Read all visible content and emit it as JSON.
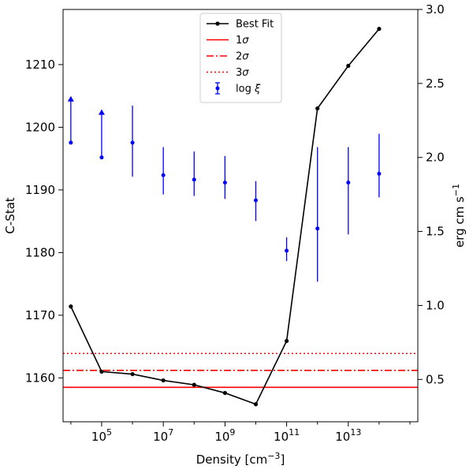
{
  "chart_data": {
    "type": "line",
    "xscale": "log",
    "x_ticks": [
      {
        "value": 100000.0,
        "base": "10",
        "exp": "5"
      },
      {
        "value": 10000000.0,
        "base": "10",
        "exp": "7"
      },
      {
        "value": 1000000000.0,
        "base": "10",
        "exp": "9"
      },
      {
        "value": 100000000000.0,
        "base": "10",
        "exp": "11"
      },
      {
        "value": 10000000000000.0,
        "base": "10",
        "exp": "13"
      }
    ],
    "xlabel": "Density [cm",
    "xlabel_sup": "−3",
    "xlabel_end": "]",
    "xlim": [
      5600.0,
      1800000000000000.0
    ],
    "left_axis": {
      "ylabel": "C-Stat",
      "ylim": [
        1153.0,
        1218.8
      ],
      "ticks": [
        1160,
        1170,
        1180,
        1190,
        1200,
        1210
      ]
    },
    "right_axis": {
      "ylabel": "erg cm s",
      "ylabel_sup": "−1",
      "ylim": [
        0.214,
        3.0
      ],
      "ticks": [
        "0.5",
        "1.0",
        "1.5",
        "2.0",
        "2.5",
        "3.0"
      ]
    },
    "series": [
      {
        "name": "Best Fit",
        "axis": "left",
        "color": "#000000",
        "x": [
          10000.0,
          100000.0,
          1000000.0,
          10000000.0,
          100000000.0,
          1000000000.0,
          10000000000.0,
          100000000000.0,
          1000000000000.0,
          10000000000000.0,
          100000000000000.0
        ],
        "y": [
          1171.4,
          1161.0,
          1160.6,
          1159.6,
          1158.9,
          1157.6,
          1155.8,
          1165.9,
          1203.0,
          1209.8,
          1215.7
        ]
      },
      {
        "name": "log ξ",
        "axis": "right",
        "color": "#0000ff",
        "x": [
          10000.0,
          100000.0,
          1000000.0,
          10000000.0,
          100000000.0,
          1000000000.0,
          10000000000.0,
          100000000000.0,
          1000000000000.0,
          10000000000000.0,
          100000000000000.0
        ],
        "y": [
          2.1,
          2.0,
          2.1,
          1.88,
          1.85,
          1.83,
          1.71,
          1.37,
          1.52,
          1.83,
          1.89
        ],
        "y_low": [
          2.1,
          2.0,
          1.87,
          1.75,
          1.74,
          1.72,
          1.57,
          1.3,
          1.16,
          1.48,
          1.73
        ],
        "y_high": [
          2.41,
          2.32,
          2.35,
          2.07,
          2.04,
          2.01,
          1.84,
          1.46,
          2.07,
          2.07,
          2.16
        ],
        "lower_limit": [
          true,
          true,
          false,
          false,
          false,
          false,
          false,
          false,
          false,
          false,
          false
        ]
      }
    ],
    "hlines": [
      {
        "name": "1σ",
        "label_base": "1",
        "label_sym": "σ",
        "y": 1158.5,
        "color": "#ff0000",
        "style": "solid"
      },
      {
        "name": "2σ",
        "label_base": "2",
        "label_sym": "σ",
        "y": 1161.2,
        "color": "#ff0000",
        "style": "dashdot"
      },
      {
        "name": "3σ",
        "label_base": "3",
        "label_sym": "σ",
        "y": 1163.9,
        "color": "#ff0000",
        "style": "dotted"
      }
    ],
    "legend": {
      "placement": "top-center",
      "entries": [
        {
          "label": "Best Fit",
          "style": "line-marker",
          "color": "#000000"
        },
        {
          "label_base": "1",
          "label_sym": "σ",
          "style": "solid",
          "color": "#ff0000"
        },
        {
          "label_base": "2",
          "label_sym": "σ",
          "style": "dashdot",
          "color": "#ff0000"
        },
        {
          "label_base": "3",
          "label_sym": "σ",
          "style": "dotted",
          "color": "#ff0000"
        },
        {
          "label_base": "log ",
          "label_sym": "ξ",
          "style": "errorbar",
          "color": "#0000ff"
        }
      ]
    },
    "grid": false
  }
}
